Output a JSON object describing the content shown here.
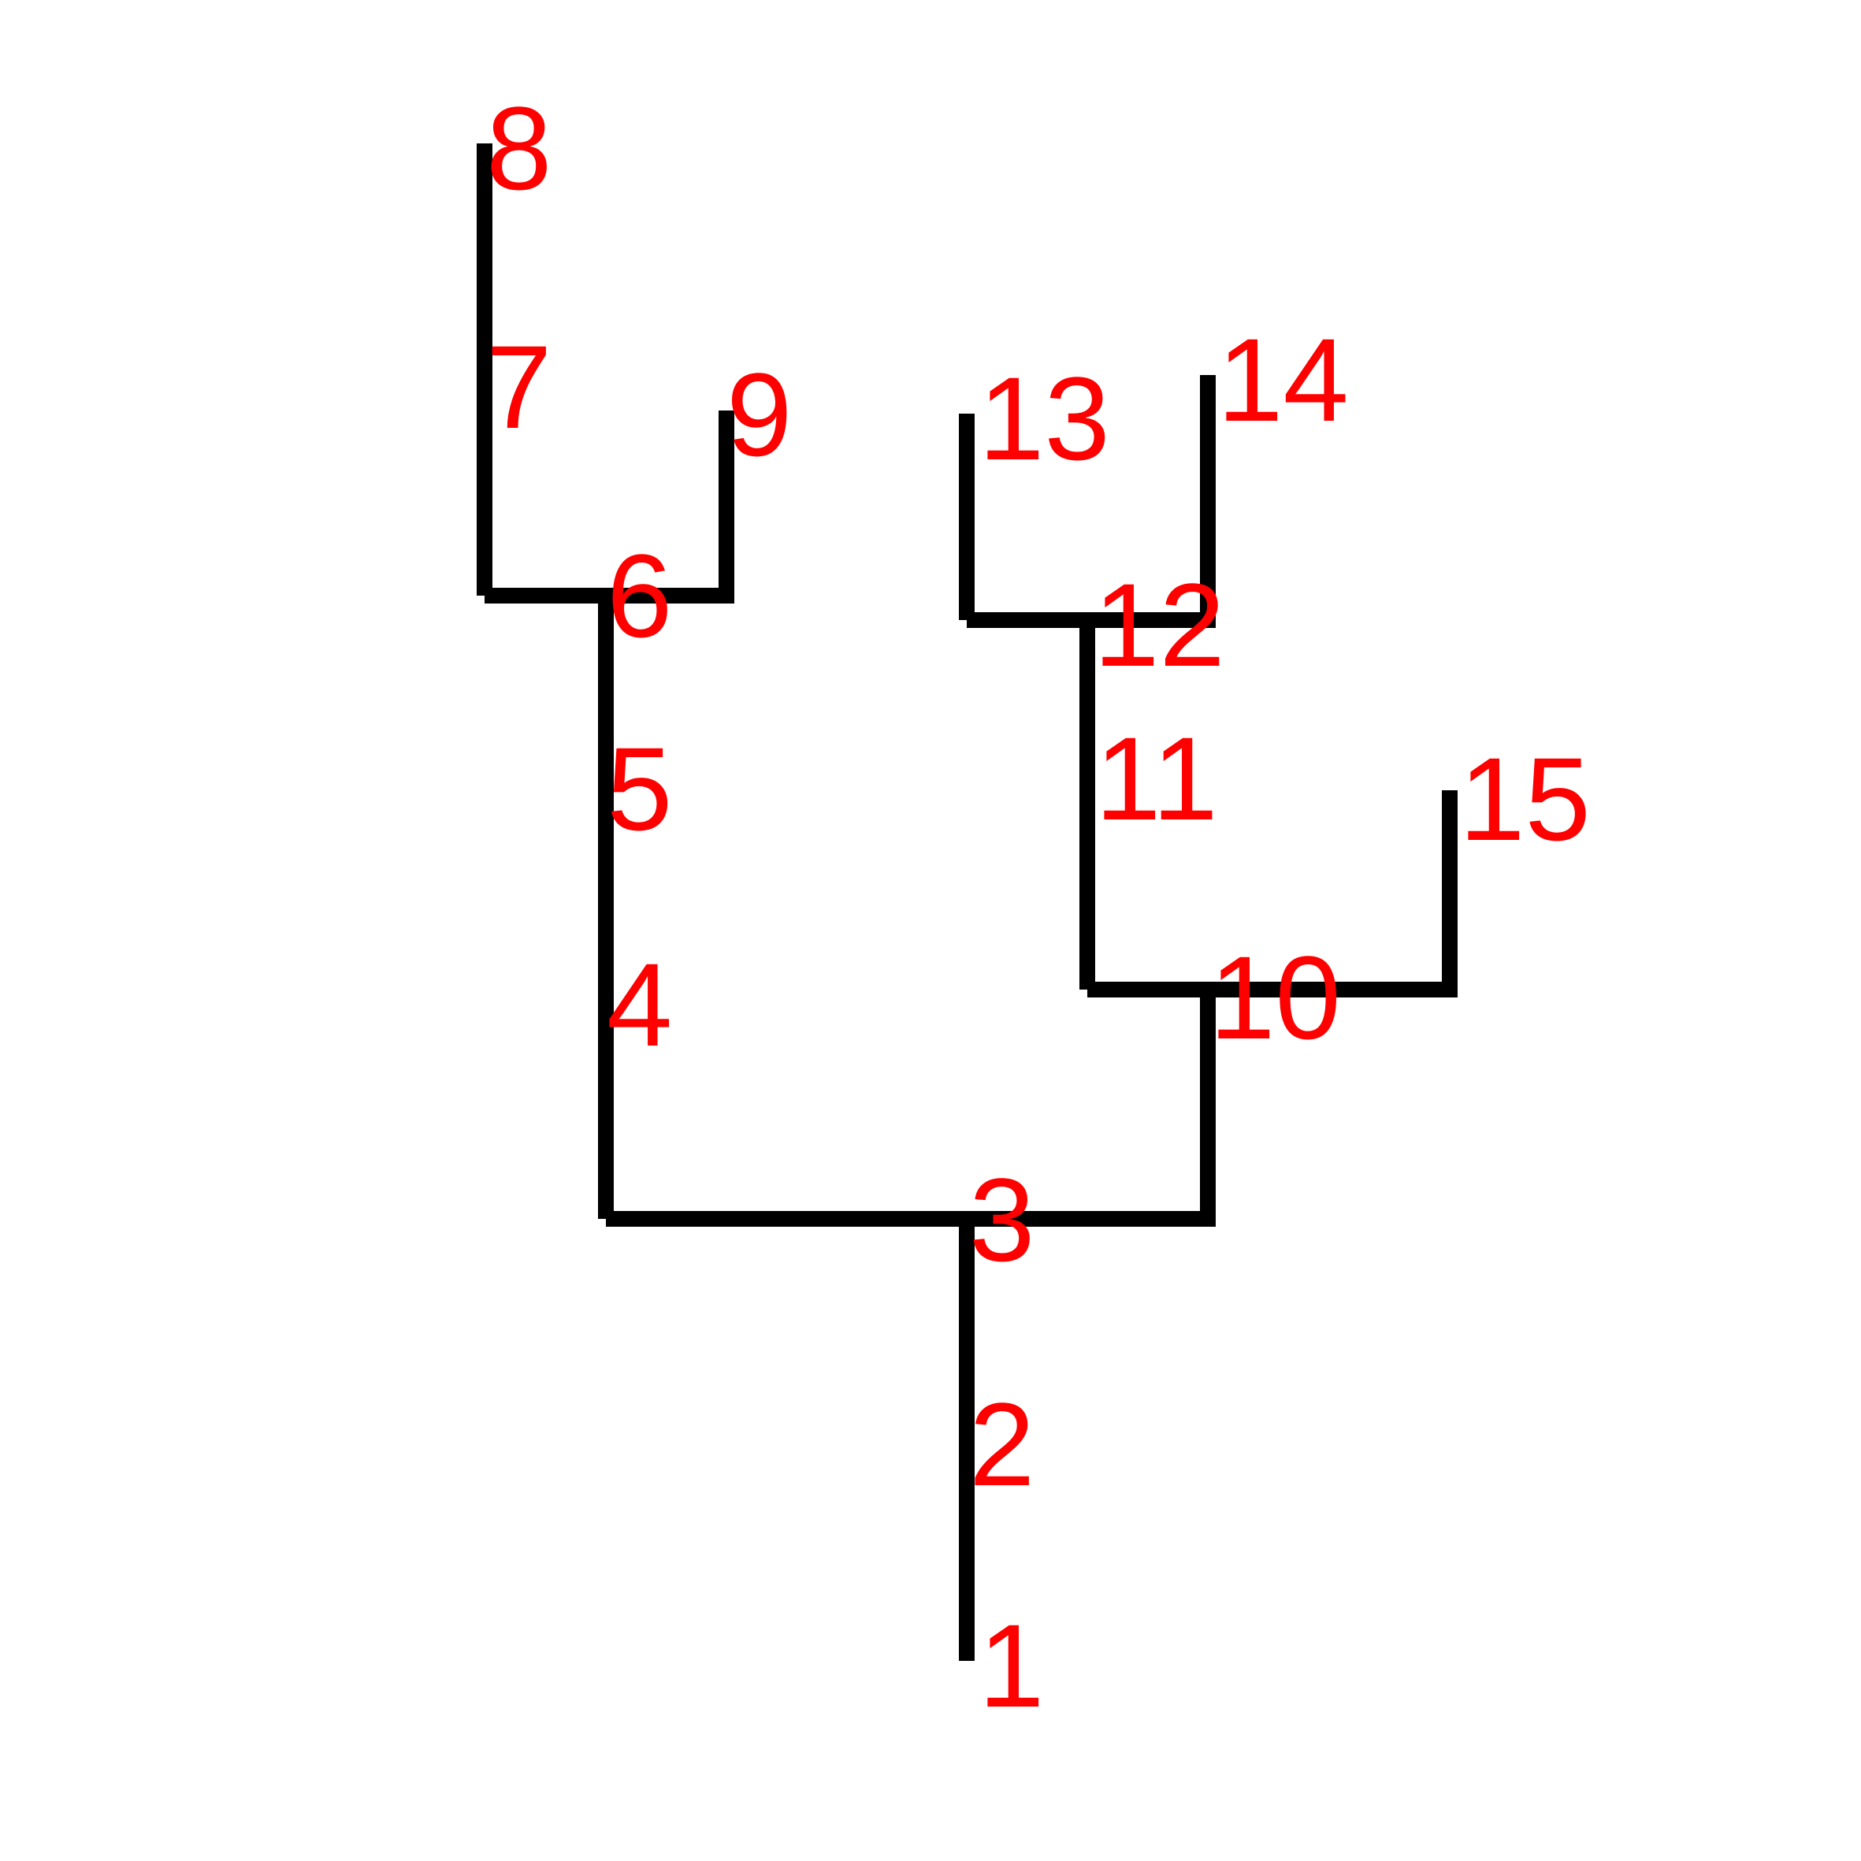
{
  "diagram": {
    "type": "tree",
    "line_color": "#000000",
    "label_color": "#ff0000",
    "nodes": [
      {
        "id": "1",
        "label": "1"
      },
      {
        "id": "2",
        "label": "2"
      },
      {
        "id": "3",
        "label": "3"
      },
      {
        "id": "4",
        "label": "4"
      },
      {
        "id": "5",
        "label": "5"
      },
      {
        "id": "6",
        "label": "6"
      },
      {
        "id": "7",
        "label": "7"
      },
      {
        "id": "8",
        "label": "8"
      },
      {
        "id": "9",
        "label": "9"
      },
      {
        "id": "10",
        "label": "10"
      },
      {
        "id": "11",
        "label": "11"
      },
      {
        "id": "12",
        "label": "12"
      },
      {
        "id": "13",
        "label": "13"
      },
      {
        "id": "14",
        "label": "14"
      },
      {
        "id": "15",
        "label": "15"
      }
    ],
    "edges": [
      {
        "from": "1",
        "to": "2"
      },
      {
        "from": "2",
        "to": "3"
      },
      {
        "from": "3",
        "to": "4"
      },
      {
        "from": "4",
        "to": "5"
      },
      {
        "from": "5",
        "to": "6"
      },
      {
        "from": "6",
        "to": "7"
      },
      {
        "from": "7",
        "to": "8"
      },
      {
        "from": "6",
        "to": "9"
      },
      {
        "from": "3",
        "to": "10"
      },
      {
        "from": "10",
        "to": "11"
      },
      {
        "from": "11",
        "to": "12"
      },
      {
        "from": "12",
        "to": "13"
      },
      {
        "from": "12",
        "to": "14"
      },
      {
        "from": "10",
        "to": "15"
      }
    ]
  }
}
